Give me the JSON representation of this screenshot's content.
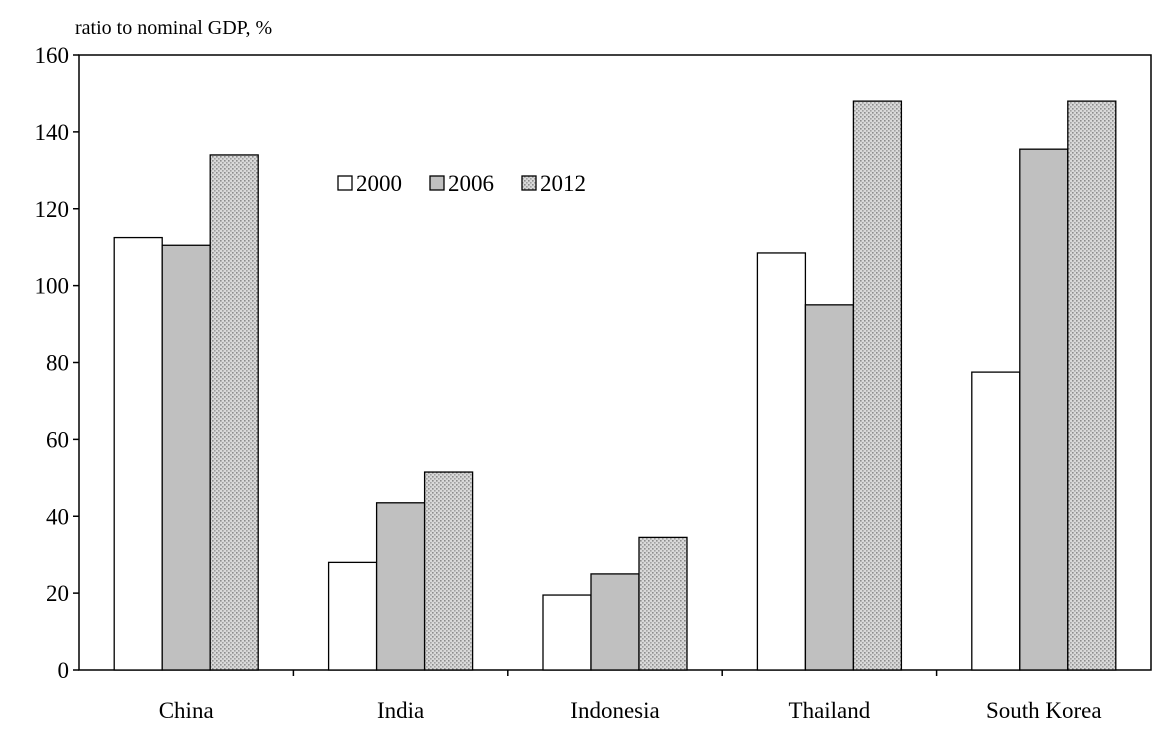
{
  "chart_data": {
    "type": "bar",
    "ylabel": "ratio to nominal GDP, %",
    "xlabel": "",
    "title": "",
    "categories": [
      "China",
      "India",
      "Indonesia",
      "Thailand",
      "South Korea"
    ],
    "series": [
      {
        "name": "2000",
        "values": [
          112.5,
          28,
          19.5,
          108.5,
          77.5
        ],
        "fill": "#ffffff",
        "pattern": "none"
      },
      {
        "name": "2006",
        "values": [
          110.5,
          43.5,
          25,
          95,
          135.5
        ],
        "fill": "#c0c0c0",
        "pattern": "none"
      },
      {
        "name": "2012",
        "values": [
          134,
          51.5,
          34.5,
          148,
          148
        ],
        "fill": "#d6d6d6",
        "pattern": "dots"
      }
    ],
    "ylim": [
      0,
      160
    ],
    "yticks": [
      0,
      20,
      40,
      60,
      80,
      100,
      120,
      140,
      160
    ],
    "grid": false,
    "legend_position": "top-center"
  }
}
